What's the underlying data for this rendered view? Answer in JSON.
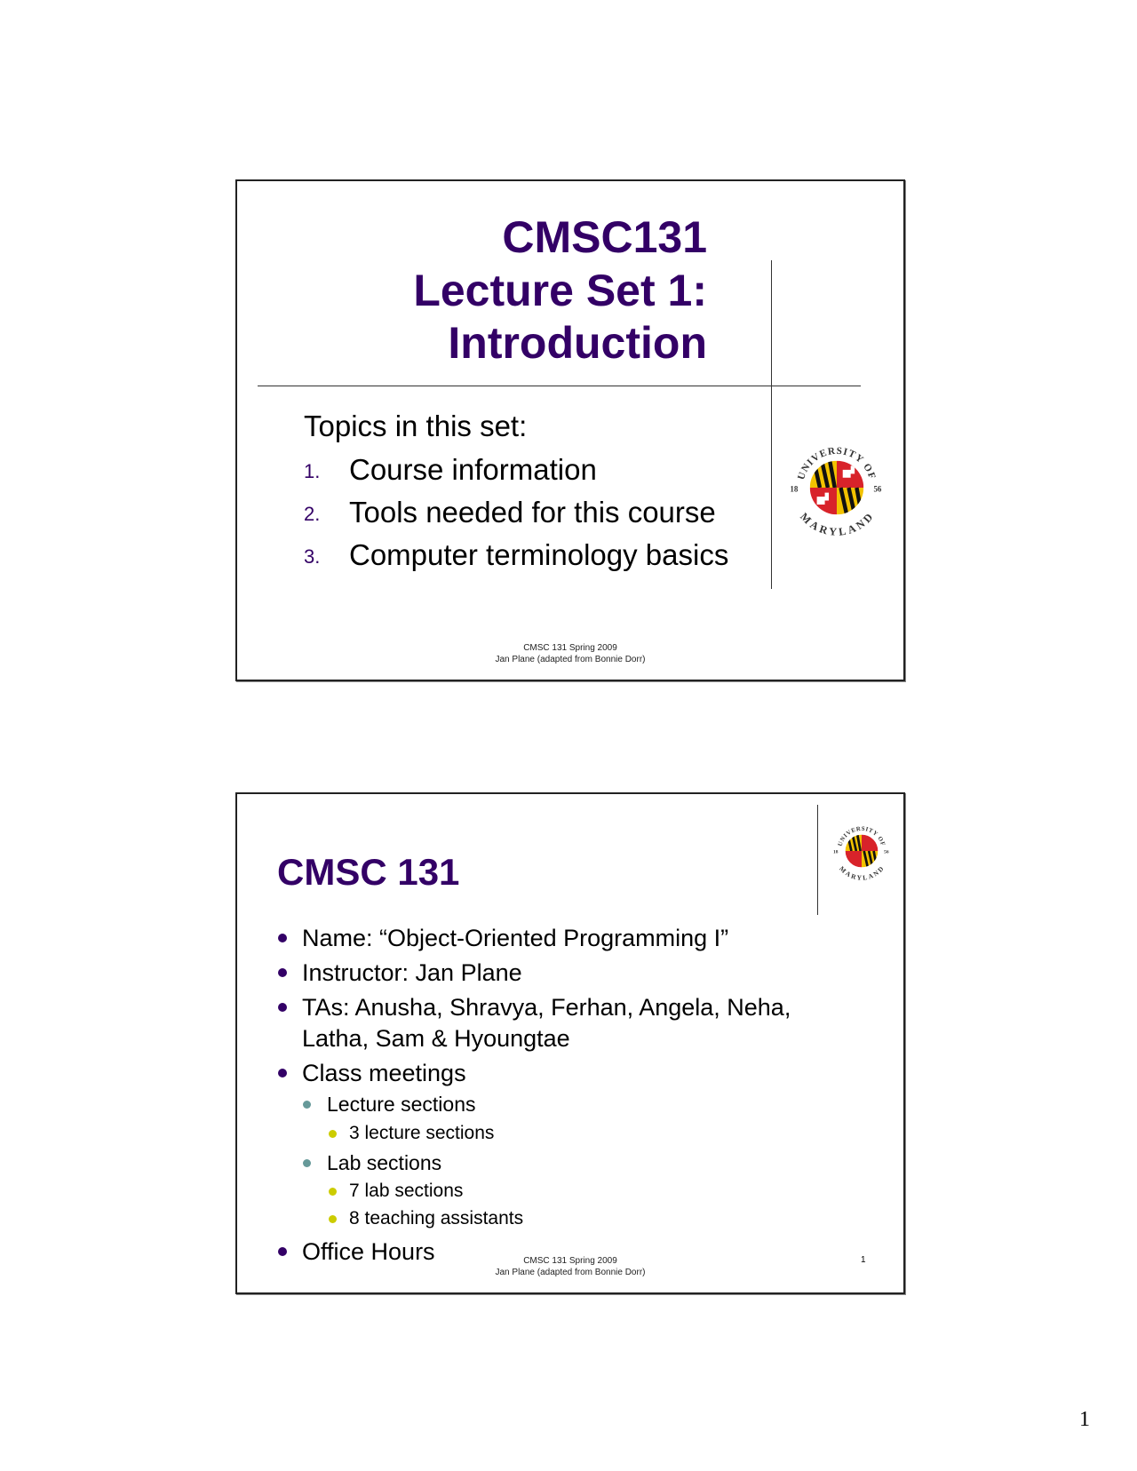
{
  "slide1": {
    "title_lines": [
      "CMSC131",
      "Lecture Set 1:",
      "Introduction"
    ],
    "topics_heading": "Topics in this set:",
    "topics": [
      {
        "number": "1.",
        "text": "Course information"
      },
      {
        "number": "2.",
        "text": "Tools needed for this course"
      },
      {
        "number": "3.",
        "text": "Computer terminology basics"
      }
    ],
    "logo": {
      "text_top": "UNIVERSITY OF",
      "text_bottom": "MARYLAND",
      "year_left": "18",
      "year_right": "56"
    },
    "footer_line1": "CMSC 131 Spring 2009",
    "footer_line2": "Jan Plane (adapted from Bonnie Dorr)"
  },
  "slide2": {
    "title": "CMSC 131",
    "bullets": [
      {
        "level": 1,
        "text": "Name:  “Object-Oriented Programming I”"
      },
      {
        "level": 1,
        "text": "Instructor: Jan Plane"
      },
      {
        "level": 1,
        "text": "TAs: Anusha, Shravya, Ferhan, Angela, Neha,"
      },
      {
        "level": 1,
        "text": "Latha, Sam & Hyoungtae",
        "continuation": true
      },
      {
        "level": 1,
        "text": "Class meetings"
      },
      {
        "level": 2,
        "text": "Lecture sections"
      },
      {
        "level": 3,
        "text": "3 lecture sections"
      },
      {
        "level": 2,
        "text": "Lab sections"
      },
      {
        "level": 3,
        "text": "7 lab sections"
      },
      {
        "level": 3,
        "text": "8 teaching assistants"
      },
      {
        "level": 1,
        "text": "Office Hours"
      }
    ],
    "logo": {
      "text_top": "UNIVERSITY OF",
      "text_bottom": "MARYLAND",
      "year_left": "18",
      "year_right": "56"
    },
    "footer_line1": "CMSC 131 Spring 2009",
    "footer_line2": "Jan Plane (adapted from Bonnie Dorr)",
    "slide_number": "1"
  },
  "page_number": "1",
  "colors": {
    "title": "#330066",
    "bullet_level1": "#330066",
    "bullet_level2": "#669999",
    "bullet_level3": "#cccc00"
  }
}
